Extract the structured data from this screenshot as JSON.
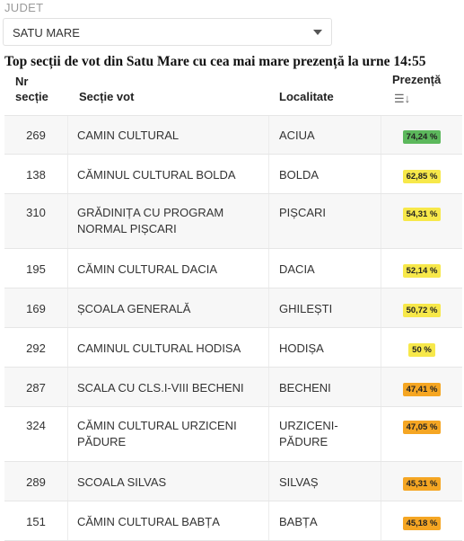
{
  "filter": {
    "label": "JUDET",
    "selected": "SATU MARE"
  },
  "title": "Top secții de vot din Satu Mare cu cea mai mare prezență la urne 14:55",
  "table": {
    "headers": {
      "nr_line1": "Nr",
      "nr_line2": "secție",
      "sectie": "Secție vot",
      "localitate": "Localitate",
      "prezenta": "Prezență",
      "sort_icon": "sort-desc-icon"
    },
    "rows": [
      {
        "nr": "269",
        "sectie": "CAMIN CULTURAL",
        "localitate": "ACIUA",
        "prezenta": "74,24 %",
        "color": "#5cb85c"
      },
      {
        "nr": "138",
        "sectie": "CĂMINUL CULTURAL BOLDA",
        "localitate": "BOLDA",
        "prezenta": "62,85 %",
        "color": "#f7e84a"
      },
      {
        "nr": "310",
        "sectie": "GRĂDINIȚA CU PROGRAM NORMAL PIȘCARI",
        "localitate": "PIȘCARI",
        "prezenta": "54,31 %",
        "color": "#f7e84a"
      },
      {
        "nr": "195",
        "sectie": "CĂMIN CULTURAL DACIA",
        "localitate": "DACIA",
        "prezenta": "52,14 %",
        "color": "#f7e84a"
      },
      {
        "nr": "169",
        "sectie": "ȘCOALA GENERALĂ",
        "localitate": "GHILEȘTI",
        "prezenta": "50,72 %",
        "color": "#f7e84a"
      },
      {
        "nr": "292",
        "sectie": "CAMINUL CULTURAL HODISA",
        "localitate": "HODIȘA",
        "prezenta": "50 %",
        "color": "#f7e84a"
      },
      {
        "nr": "287",
        "sectie": "SCALA CU CLS.I-VIII BECHENI",
        "localitate": "BECHENI",
        "prezenta": "47,41 %",
        "color": "#f5a623"
      },
      {
        "nr": "324",
        "sectie": "CĂMIN CULTURAL URZICENI PĂDURE",
        "localitate": "URZICENI-PĂDURE",
        "prezenta": "47,05 %",
        "color": "#f5a623"
      },
      {
        "nr": "289",
        "sectie": "SCOALA SILVAS",
        "localitate": "SILVAȘ",
        "prezenta": "45,31 %",
        "color": "#f5a623"
      },
      {
        "nr": "151",
        "sectie": "CĂMIN CULTURAL BABȚA",
        "localitate": "BABȚA",
        "prezenta": "45,18 %",
        "color": "#f5a623"
      }
    ]
  }
}
